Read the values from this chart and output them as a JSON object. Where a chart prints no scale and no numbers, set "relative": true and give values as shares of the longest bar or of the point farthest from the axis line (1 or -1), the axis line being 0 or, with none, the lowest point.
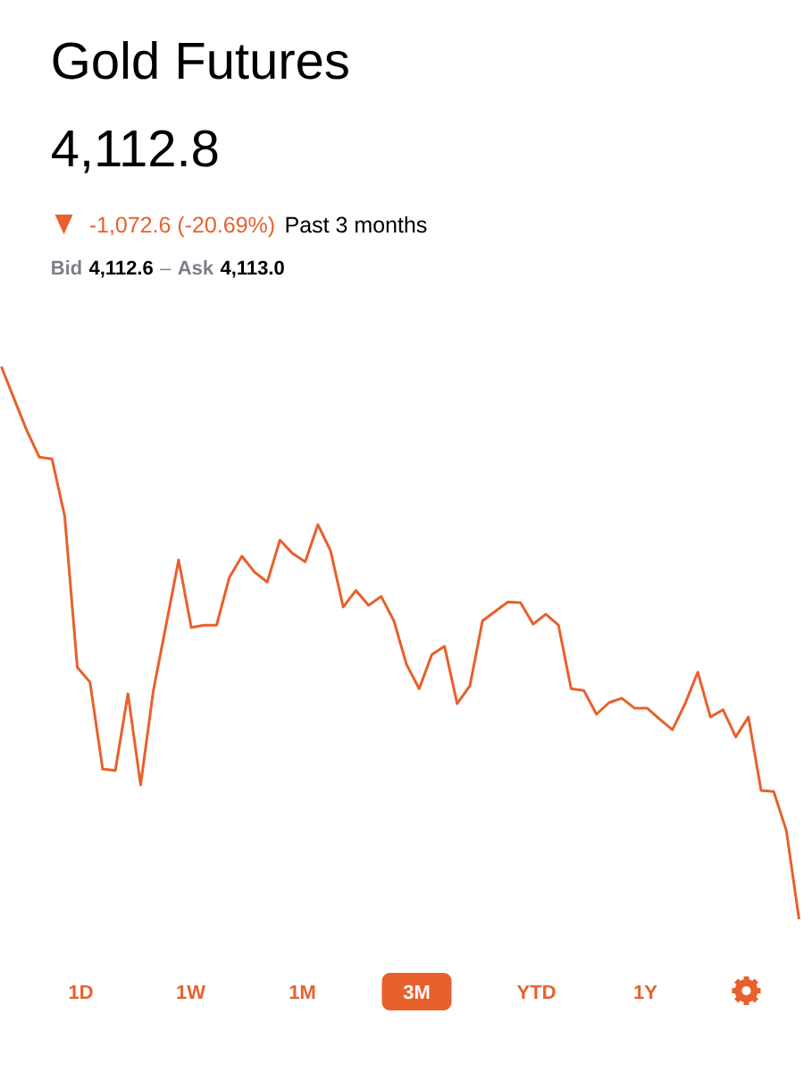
{
  "chart_data": {
    "type": "line",
    "title": "Gold Futures",
    "subtitle": "4,112.8",
    "annotations": [
      "-1,072.6 (-20.69%)",
      "Past 3 months",
      "Bid",
      "4,112.6",
      "–",
      "Ask",
      "4,113.0",
      "1D",
      "1W",
      "1M",
      "3M",
      "YTD",
      "1Y"
    ],
    "relative": true,
    "color": "#e8602c",
    "categories": [
      null,
      null,
      null,
      null,
      null,
      null,
      null,
      null,
      null,
      null,
      null,
      null,
      null,
      null,
      null,
      null,
      null,
      null,
      null,
      null,
      null,
      null,
      null,
      null,
      null,
      null,
      null,
      null,
      null,
      null,
      null,
      null,
      null,
      null,
      null,
      null,
      null,
      null,
      null,
      null,
      null,
      null,
      null,
      null,
      null,
      null,
      null,
      null,
      null,
      null,
      null,
      null,
      null,
      null,
      null,
      null,
      null,
      null,
      null,
      null,
      null,
      null,
      null,
      null
    ],
    "values": [
      1.0,
      0.942,
      0.885,
      0.836,
      0.833,
      0.73,
      0.456,
      0.429,
      0.272,
      0.269,
      0.408,
      0.243,
      0.413,
      0.531,
      0.65,
      0.528,
      0.532,
      0.532,
      0.618,
      0.657,
      0.628,
      0.61,
      0.686,
      0.662,
      0.647,
      0.714,
      0.667,
      0.565,
      0.595,
      0.568,
      0.584,
      0.54,
      0.461,
      0.417,
      0.479,
      0.494,
      0.39,
      0.422,
      0.54,
      0.557,
      0.574,
      0.573,
      0.534,
      0.552,
      0.532,
      0.417,
      0.414,
      0.371,
      0.392,
      0.4,
      0.382,
      0.382,
      0.362,
      0.343,
      0.39,
      0.447,
      0.366,
      0.379,
      0.33,
      0.366,
      0.233,
      0.231,
      0.16,
      0.0
    ]
  }
}
